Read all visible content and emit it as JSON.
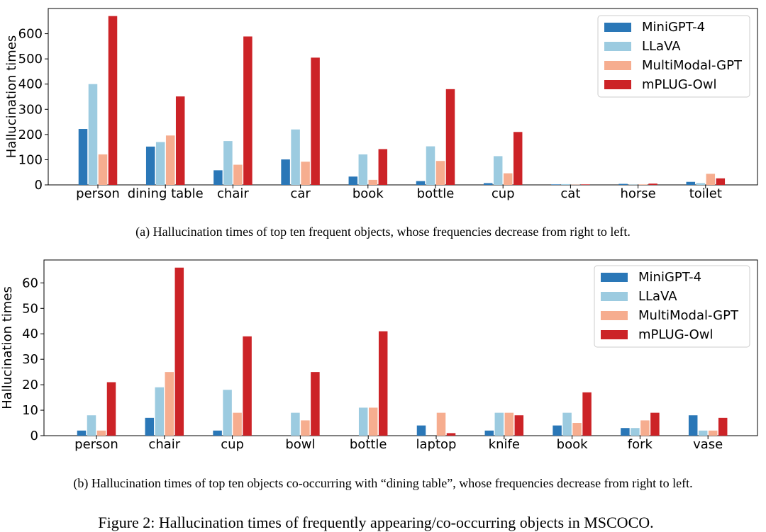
{
  "colors": {
    "MiniGPT-4": "#2a77b7",
    "LLaVA": "#9ccbe0",
    "MultiModal-GPT": "#f6ad8f",
    "mPLUG-Owl": "#cc2327"
  },
  "captions": {
    "a": "(a)  Hallucination times of top ten frequent objects, whose frequencies decrease from right to left.",
    "b": "(b)  Hallucination times of top ten objects co-occurring with “dining table”, whose frequencies decrease from right to left.",
    "figure": "Figure 2: Hallucination times of frequently appearing/co-occurring objects in MSCOCO."
  },
  "chart_data": [
    {
      "type": "bar",
      "ylabel": "Hallucination times",
      "xlabel": "",
      "ylim": [
        0,
        700
      ],
      "yticks": [
        0,
        100,
        200,
        300,
        400,
        500,
        600
      ],
      "legend_position": "top-right",
      "grid": false,
      "categories": [
        "person",
        "dining table",
        "chair",
        "car",
        "book",
        "bottle",
        "cup",
        "cat",
        "horse",
        "toilet"
      ],
      "series": [
        {
          "name": "MiniGPT-4",
          "values": [
            222,
            152,
            58,
            101,
            33,
            15,
            7,
            2,
            4,
            12
          ]
        },
        {
          "name": "LLaVA",
          "values": [
            400,
            170,
            174,
            220,
            121,
            153,
            114,
            3,
            1,
            7
          ]
        },
        {
          "name": "MultiModal-GPT",
          "values": [
            121,
            196,
            80,
            92,
            20,
            95,
            46,
            1,
            2,
            44
          ]
        },
        {
          "name": "mPLUG-Owl",
          "values": [
            670,
            351,
            589,
            505,
            142,
            380,
            210,
            2,
            5,
            26
          ]
        }
      ]
    },
    {
      "type": "bar",
      "ylabel": "Hallucination times",
      "xlabel": "",
      "ylim": [
        0,
        69
      ],
      "yticks": [
        0,
        10,
        20,
        30,
        40,
        50,
        60
      ],
      "legend_position": "top-right",
      "grid": false,
      "categories": [
        "person",
        "chair",
        "cup",
        "bowl",
        "bottle",
        "laptop",
        "knife",
        "book",
        "fork",
        "vase"
      ],
      "series": [
        {
          "name": "MiniGPT-4",
          "values": [
            2,
            7,
            2,
            0,
            0,
            4,
            2,
            4,
            3,
            8
          ]
        },
        {
          "name": "LLaVA",
          "values": [
            8,
            19,
            18,
            9,
            11,
            0,
            9,
            9,
            3,
            2
          ]
        },
        {
          "name": "MultiModal-GPT",
          "values": [
            2,
            25,
            9,
            6,
            11,
            9,
            9,
            5,
            6,
            2
          ]
        },
        {
          "name": "mPLUG-Owl",
          "values": [
            21,
            66,
            39,
            25,
            41,
            1,
            8,
            17,
            9,
            7
          ]
        }
      ]
    }
  ]
}
